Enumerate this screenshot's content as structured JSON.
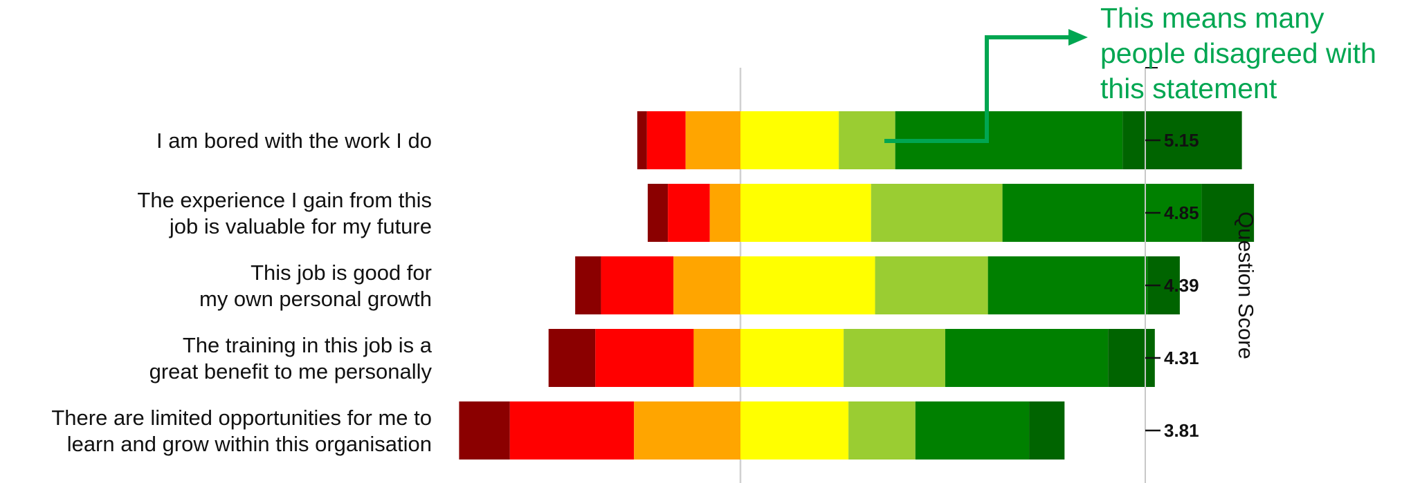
{
  "chart_data": {
    "type": "bar",
    "subtype": "diverging-stacked",
    "ylabel_right": "Question Score",
    "categories": [
      "I am bored with the work I do",
      "The experience I gain from this job is valuable for my future",
      "This job is good for my own personal growth",
      "The training in this job is a great benefit to me personally",
      "There are limited opportunities for me to learn and grow within this organisation"
    ],
    "category_lines": [
      [
        "I am bored with the work I do"
      ],
      [
        "The experience I gain from this",
        "job is valuable for my future"
      ],
      [
        "This job is good for",
        "my own personal growth"
      ],
      [
        "The training in this job is a",
        "great benefit to me personally"
      ],
      [
        "There are limited opportunities for me to",
        "learn and grow within this organisation"
      ]
    ],
    "scores": [
      "5.15",
      "4.85",
      "4.39",
      "4.31",
      "3.81"
    ],
    "segment_colors": [
      "#8b0000",
      "#ff0000",
      "#ffa500",
      "#ffff00",
      "#9acd32",
      "#008000",
      "#006400"
    ],
    "rows": [
      {
        "segments": [
          1.2,
          4.8,
          6.8,
          12.2,
          7.0,
          28.2,
          14.8
        ]
      },
      {
        "segments": [
          2.5,
          5.2,
          3.8,
          16.2,
          16.3,
          24.7,
          6.5
        ]
      },
      {
        "segments": [
          3.2,
          9.0,
          8.3,
          16.7,
          14.0,
          19.8,
          4.0
        ]
      },
      {
        "segments": [
          5.8,
          12.2,
          5.8,
          12.8,
          12.6,
          20.2,
          5.8
        ]
      },
      {
        "segments": [
          6.3,
          15.4,
          13.2,
          13.4,
          8.3,
          14.1,
          4.4
        ]
      }
    ],
    "center_line_after_segment": 3,
    "annotation": {
      "lines": [
        "This means many",
        "people disagreed with",
        "this statement"
      ],
      "color": "#00a651"
    }
  }
}
